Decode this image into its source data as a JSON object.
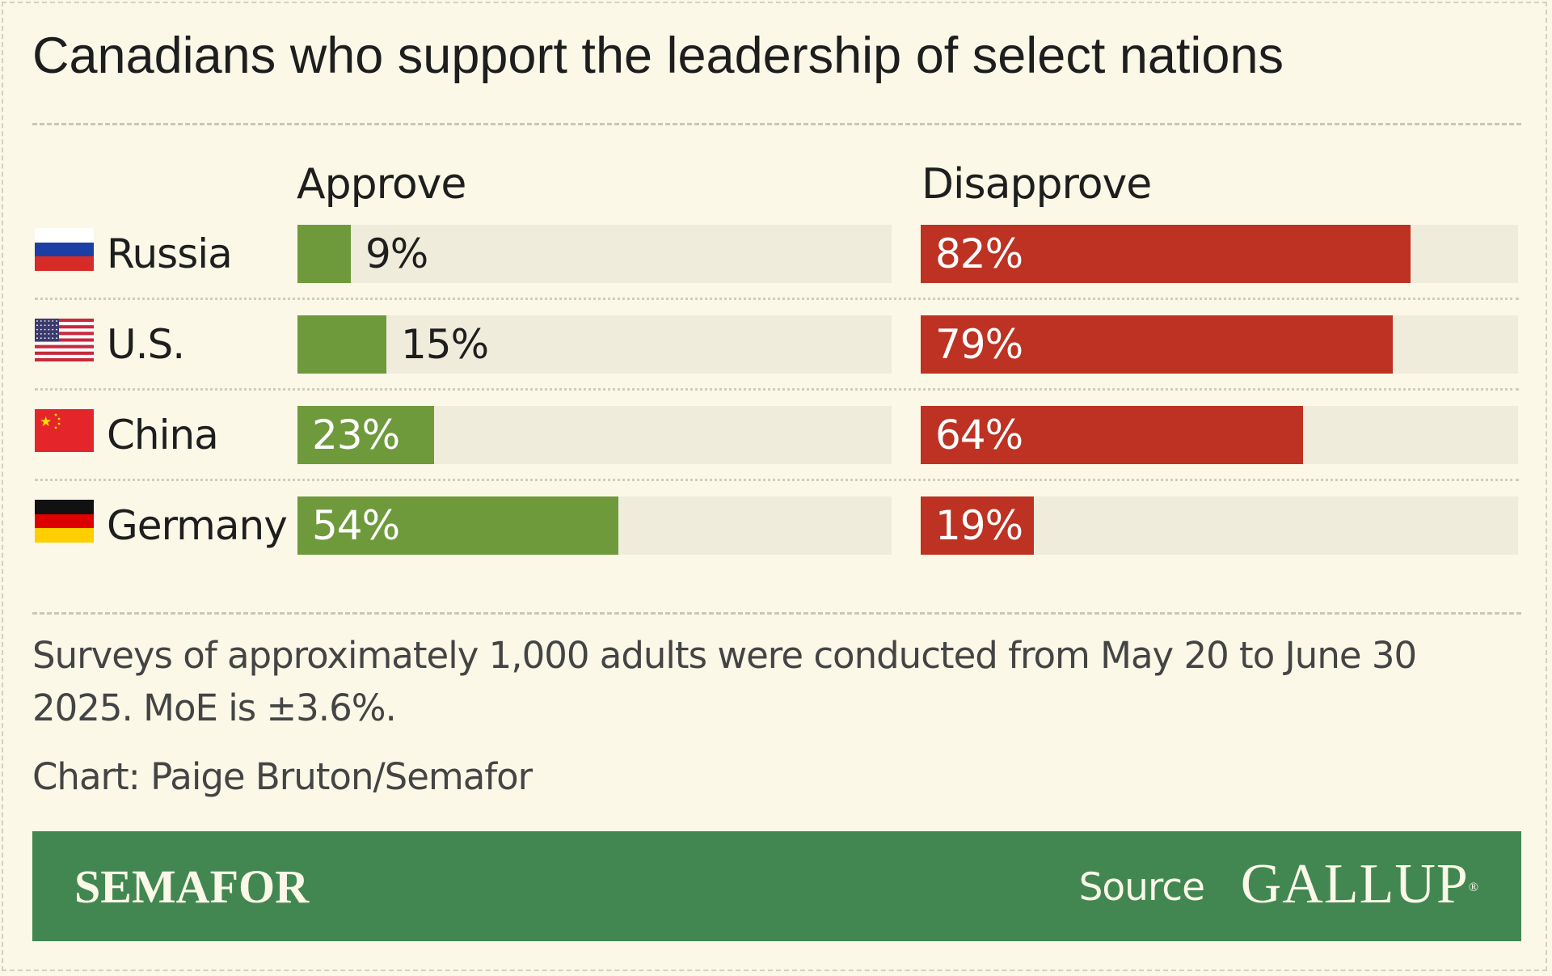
{
  "title": "Canadians who support the leadership of select nations",
  "colors": {
    "approve": "#6e9a3c",
    "disapprove": "#bd3222",
    "track": "#efecdc",
    "background": "#fbf8e8",
    "footer": "#428752"
  },
  "chart_data": {
    "type": "bar",
    "title": "Canadians who support the leadership of select nations",
    "series": [
      {
        "name": "Approve",
        "values": [
          9,
          15,
          23,
          54
        ],
        "labels": [
          "9%",
          "15%",
          "23%",
          "54%"
        ]
      },
      {
        "name": "Disapprove",
        "values": [
          82,
          79,
          64,
          19
        ],
        "labels": [
          "82%",
          "79%",
          "64%",
          "19%"
        ]
      }
    ],
    "categories": [
      "Russia",
      "U.S.",
      "China",
      "Germany"
    ],
    "flag_icons": [
      "russia-flag-icon",
      "us-flag-icon",
      "china-flag-icon",
      "germany-flag-icon"
    ],
    "ylim": [
      0,
      100
    ]
  },
  "footnote": "Surveys of approximately 1,000 adults were conducted from May 20 to June 30 2025. MoE is ±3.6%.",
  "credit": "Chart: Paige Bruton/Semafor",
  "footer": {
    "brand": "SEMAFOR",
    "source_label": "Source",
    "source_logo": "GALLUP"
  }
}
